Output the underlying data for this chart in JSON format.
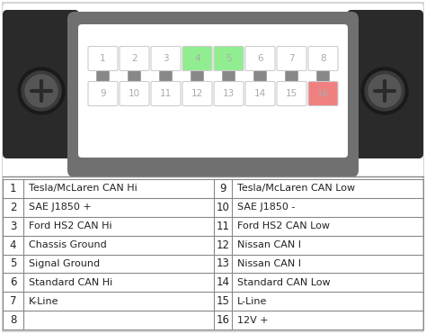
{
  "bg_color": "#ffffff",
  "outer_border_color": "#cccccc",
  "connector_dark": "#2a2a2a",
  "connector_gray": "#707070",
  "connector_light": "#f0f0f0",
  "connector_inner_bg": "#ffffff",
  "pin_bg": "#ffffff",
  "pin_border": "#cccccc",
  "pin4_color": "#90ee90",
  "pin5_color": "#90ee90",
  "pin16_color": "#f08080",
  "pin_text_color": "#aaaaaa",
  "tab_color": "#888888",
  "table_border_color": "#888888",
  "text_color": "#222222",
  "left_pins": [
    "1",
    "2",
    "3",
    "4",
    "5",
    "6",
    "7",
    "8"
  ],
  "right_pins": [
    "9",
    "10",
    "11",
    "12",
    "13",
    "14",
    "15",
    "16"
  ],
  "left_labels": [
    "Tesla/McLaren CAN Hi",
    "SAE J1850 +",
    "Ford HS2 CAN Hi",
    "Chassis Ground",
    "Signal Ground",
    "Standard CAN Hi",
    "K-Line",
    ""
  ],
  "right_labels": [
    "Tesla/McLaren CAN Low",
    "SAE J1850 -",
    "Ford HS2 CAN Low",
    "Nissan CAN I",
    "Nissan CAN I",
    "Standard CAN Low",
    "L-Line",
    "12V +"
  ],
  "figsize": [
    4.74,
    3.71
  ],
  "dpi": 100
}
